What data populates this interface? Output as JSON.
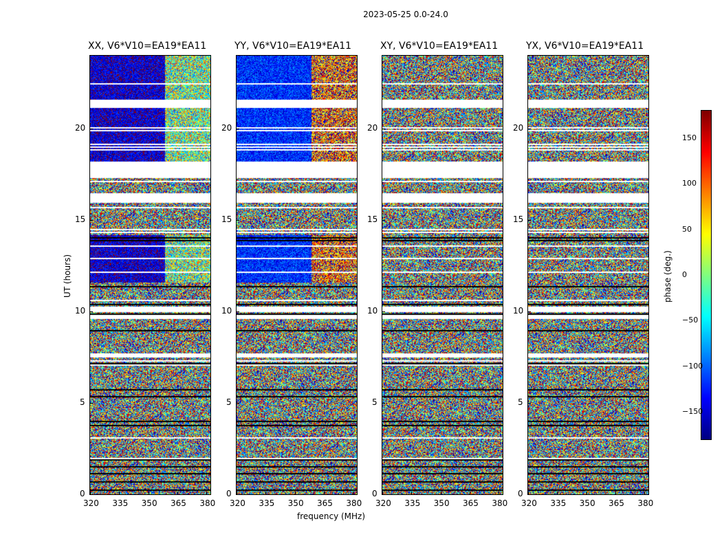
{
  "chart_data": {
    "type": "heatmap",
    "suptitle": "2023-05-25 0.0-24.0",
    "xlabel": "frequency (MHz)",
    "ylabel": "UT (hours)",
    "xlim": [
      320,
      382
    ],
    "ylim": [
      0,
      24
    ],
    "xticks": [
      "320",
      "335",
      "350",
      "365",
      "380"
    ],
    "yticks": [
      "0",
      "5",
      "10",
      "15",
      "20"
    ],
    "panels": [
      {
        "title": "XX, V6*V10=EA19*EA11",
        "correlation": "XX",
        "mean_phase_low_freq": -150,
        "mean_phase_high_freq": 0,
        "coherent_hours": [
          [
            11.6,
            14.2
          ],
          [
            18.2,
            24.0
          ]
        ]
      },
      {
        "title": "YY, V6*V10=EA19*EA11",
        "correlation": "YY",
        "mean_phase_low_freq": -120,
        "mean_phase_high_freq": 110,
        "coherent_hours": [
          [
            11.6,
            14.2
          ],
          [
            18.2,
            24.0
          ]
        ]
      },
      {
        "title": "XY, V6*V10=EA19*EA11",
        "correlation": "XY",
        "mean_phase_low_freq": null,
        "mean_phase_high_freq": null,
        "coherent_hours": []
      },
      {
        "title": "YX, V6*V10=EA19*EA11",
        "correlation": "YX",
        "mean_phase_low_freq": null,
        "mean_phase_high_freq": null,
        "coherent_hours": []
      }
    ],
    "flagged_hours": [
      [
        17.3,
        18.2
      ],
      [
        16.0,
        16.5
      ],
      [
        21.2,
        21.6
      ],
      [
        10.0,
        10.3
      ],
      [
        7.5,
        7.7
      ]
    ],
    "colorbar": {
      "label": "phase (deg.)",
      "range": [
        -180,
        180
      ],
      "ticks": [
        "150",
        "100",
        "50",
        "0",
        "−50",
        "−100",
        "−150"
      ],
      "tick_values": [
        150,
        100,
        50,
        0,
        -50,
        -100,
        -150
      ],
      "colormap": "jet"
    }
  }
}
